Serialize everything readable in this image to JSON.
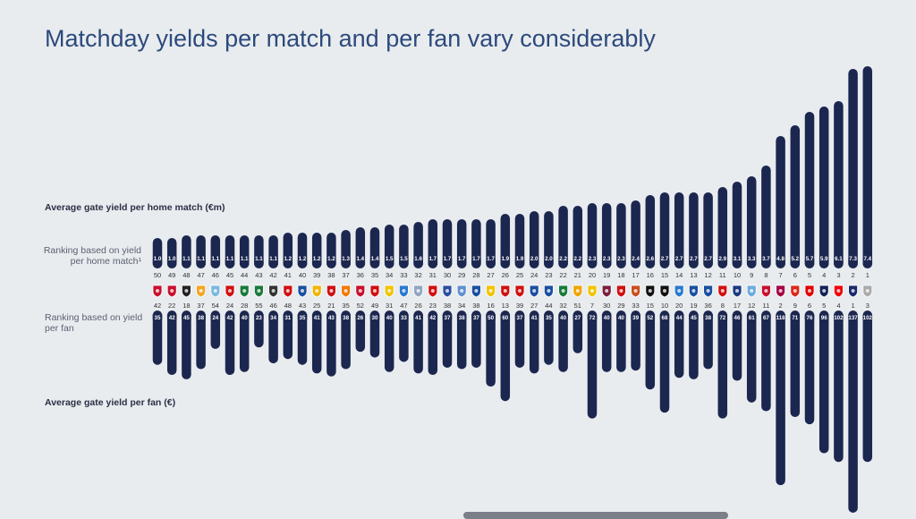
{
  "title": "Matchday yields per match and per fan vary considerably",
  "labels": {
    "avg_gate_match": "Average gate yield per home match (€m)",
    "rank_match": "Ranking based on yield per home match¹",
    "rank_match_line1": "Ranking based on yield",
    "rank_match_line2": "per home match¹",
    "rank_fan_line1": "Ranking based on yield",
    "rank_fan_line2": "per fan",
    "avg_gate_fan": "Average gate yield per fan (€)"
  },
  "chart_data": {
    "type": "bar",
    "title": "Matchday yields per match and per fan vary considerably",
    "series": [
      {
        "name": "Average gate yield per home match (€m)",
        "values": [
          1.0,
          1.0,
          1.1,
          1.1,
          1.1,
          1.1,
          1.1,
          1.1,
          1.1,
          1.2,
          1.2,
          1.2,
          1.2,
          1.3,
          1.4,
          1.4,
          1.5,
          1.5,
          1.6,
          1.7,
          1.7,
          1.7,
          1.7,
          1.7,
          1.9,
          1.9,
          2.0,
          2.0,
          2.2,
          2.2,
          2.3,
          2.3,
          2.3,
          2.4,
          2.6,
          2.7,
          2.7,
          2.7,
          2.7,
          2.9,
          3.1,
          3.3,
          3.7,
          4.8,
          5.2,
          5.7,
          5.9,
          6.1,
          7.3,
          7.4
        ]
      },
      {
        "name": "Average gate yield per fan (€)",
        "values": [
          35,
          42,
          45,
          38,
          24,
          42,
          40,
          23,
          34,
          31,
          35,
          41,
          43,
          38,
          26,
          30,
          40,
          33,
          41,
          42,
          37,
          38,
          37,
          50,
          60,
          37,
          41,
          35,
          40,
          27,
          72,
          40,
          40,
          39,
          52,
          68,
          44,
          45,
          38,
          72,
          46,
          61,
          67,
          118,
          71,
          76,
          96,
          102,
          137,
          102
        ]
      }
    ],
    "rank_per_match": [
      50,
      49,
      48,
      47,
      46,
      45,
      44,
      43,
      42,
      41,
      40,
      39,
      38,
      37,
      36,
      35,
      34,
      33,
      32,
      31,
      30,
      29,
      28,
      27,
      26,
      25,
      24,
      23,
      22,
      21,
      20,
      19,
      18,
      17,
      16,
      15,
      14,
      13,
      12,
      11,
      10,
      9,
      8,
      7,
      6,
      5,
      4,
      3,
      2,
      1
    ],
    "rank_per_fan": [
      42,
      22,
      18,
      37,
      54,
      24,
      28,
      55,
      46,
      48,
      43,
      25,
      21,
      35,
      52,
      49,
      31,
      47,
      26,
      23,
      38,
      34,
      38,
      16,
      13,
      39,
      27,
      44,
      32,
      51,
      7,
      30,
      29,
      33,
      15,
      10,
      20,
      19,
      36,
      8,
      17,
      12,
      11,
      2,
      9,
      6,
      5,
      4,
      1,
      3
    ],
    "xlabel": "",
    "ylabel": "",
    "legend": "none"
  },
  "crests": {
    "colors": [
      "#c8102e",
      "#c8102e",
      "#222222",
      "#f5a623",
      "#7ab8e0",
      "#d01010",
      "#1a7a3a",
      "#1a7a3a",
      "#333333",
      "#d01010",
      "#1a4fa0",
      "#f0b400",
      "#d01010",
      "#f07a00",
      "#c8102e",
      "#d01010",
      "#f0c400",
      "#2a7ad0",
      "#8fa6c0",
      "#d01010",
      "#2a4fa0",
      "#6090d0",
      "#1a4fa0",
      "#f0c400",
      "#d01010",
      "#d01010",
      "#1a4fa0",
      "#1a4fa0",
      "#1a7a3a",
      "#f0a400",
      "#f0c400",
      "#7a1f3d",
      "#d01010",
      "#c85020",
      "#111111",
      "#111111",
      "#2a7ad0",
      "#1a4fa0",
      "#1a4fa0",
      "#d01010",
      "#1a3a80",
      "#6cabdd",
      "#c8102e",
      "#a50044",
      "#da291c",
      "#e00000",
      "#132257",
      "#ef0107",
      "#1a2a6a",
      "#aaaaaa"
    ]
  }
}
